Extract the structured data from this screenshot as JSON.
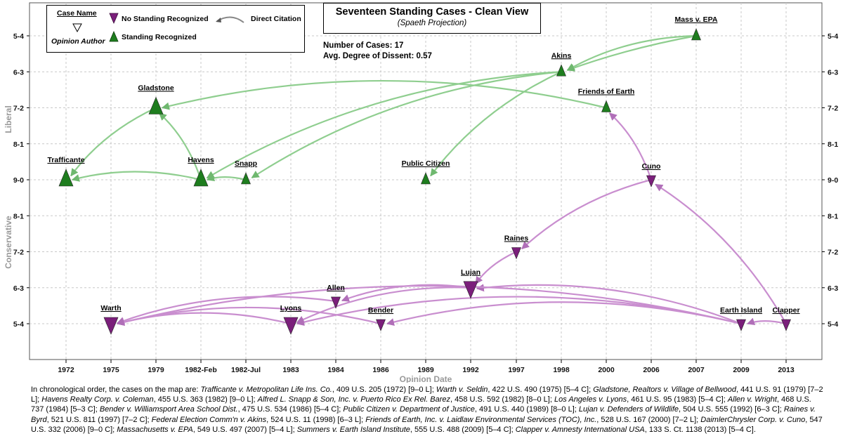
{
  "chart_data": {
    "type": "scatter",
    "title": "Seventeen Standing Cases - Clean View",
    "subtitle": "(Spaeth Projection)",
    "stats": {
      "cases_label": "Number of Cases: 17",
      "dissent_label": "Avg. Degree of Dissent: 0.57"
    },
    "xlabel": "Opinion Date",
    "ylabel_top": "Liberal",
    "ylabel_bottom": "Conservative",
    "x_categories": [
      "1972",
      "1975",
      "1979",
      "1982-Feb",
      "1982-Jul",
      "1983",
      "1984",
      "1986",
      "1989",
      "1992",
      "1997",
      "1998",
      "2000",
      "2006",
      "2007",
      "2009",
      "2013"
    ],
    "y_categories": [
      "5-4",
      "6-3",
      "7-2",
      "8-1",
      "9-0",
      "8-1",
      "7-2",
      "6-3",
      "5-4"
    ],
    "y_axis_note": "top = liberal (5-4), middle = unanimous 9-0, bottom = conservative (5-4)",
    "grid": true,
    "legend": {
      "case_name": "Case Name",
      "opinion_author": "Opinion Author",
      "no_standing": "No Standing Recognized",
      "standing": "Standing Recognized",
      "citation": "Direct Citation"
    },
    "colors": {
      "recognized": "#1e7d1e",
      "not_recognized": "#7b1f7b",
      "recognized_edge": "#8fce8f",
      "not_recognized_edge": "#c98ecf",
      "grid": "#c8c8c8"
    },
    "cases": [
      {
        "name": "Trafficante",
        "x": "1972",
        "y": "9-0",
        "standing": true,
        "size": "large"
      },
      {
        "name": "Warth",
        "x": "1975",
        "y": "5-4 C",
        "standing": false,
        "size": "large"
      },
      {
        "name": "Gladstone",
        "x": "1979",
        "y": "7-2 L",
        "standing": true,
        "size": "large"
      },
      {
        "name": "Havens",
        "x": "1982-Feb",
        "y": "9-0",
        "standing": true,
        "size": "large"
      },
      {
        "name": "Snapp",
        "x": "1982-Jul",
        "y": "8-0 L",
        "standing": true,
        "size": "small"
      },
      {
        "name": "Lyons",
        "x": "1983",
        "y": "5-4 C",
        "standing": false,
        "size": "large"
      },
      {
        "name": "Allen",
        "x": "1984",
        "y": "5-3 C",
        "standing": false,
        "size": "small"
      },
      {
        "name": "Bender",
        "x": "1986",
        "y": "5-4 C",
        "standing": false,
        "size": "small"
      },
      {
        "name": "Public Citizen",
        "x": "1989",
        "y": "8-0 L",
        "standing": true,
        "size": "small"
      },
      {
        "name": "Lujan",
        "x": "1992",
        "y": "6-3 C",
        "standing": false,
        "size": "large"
      },
      {
        "name": "Raines",
        "x": "1997",
        "y": "7-2 C",
        "standing": false,
        "size": "small"
      },
      {
        "name": "Akins",
        "x": "1998",
        "y": "6-3 L",
        "standing": true,
        "size": "small"
      },
      {
        "name": "Friends of Earth",
        "x": "2000",
        "y": "7-2 L",
        "standing": true,
        "size": "small"
      },
      {
        "name": "Cuno",
        "x": "2006",
        "y": "9-0 C",
        "standing": false,
        "size": "small"
      },
      {
        "name": "Mass v. EPA",
        "x": "2007",
        "y": "5-4 L",
        "standing": true,
        "size": "small"
      },
      {
        "name": "Earth Island",
        "x": "2009",
        "y": "5-4 C",
        "standing": false,
        "size": "small"
      },
      {
        "name": "Clapper",
        "x": "2013",
        "y": "5-4 C",
        "standing": false,
        "size": "small"
      }
    ],
    "citations": [
      {
        "from": "Gladstone",
        "to": "Trafficante"
      },
      {
        "from": "Havens",
        "to": "Trafficante"
      },
      {
        "from": "Havens",
        "to": "Gladstone"
      },
      {
        "from": "Snapp",
        "to": "Havens"
      },
      {
        "from": "Akins",
        "to": "Havens"
      },
      {
        "from": "Akins",
        "to": "Snapp"
      },
      {
        "from": "Akins",
        "to": "Public Citizen"
      },
      {
        "from": "Friends of Earth",
        "to": "Gladstone"
      },
      {
        "from": "Cuno",
        "to": "Friends of Earth"
      },
      {
        "from": "Mass v. EPA",
        "to": "Akins"
      },
      {
        "from": "Mass v. EPA",
        "to": "Akins"
      },
      {
        "from": "Lyons",
        "to": "Warth"
      },
      {
        "from": "Allen",
        "to": "Warth"
      },
      {
        "from": "Bender",
        "to": "Warth"
      },
      {
        "from": "Lujan",
        "to": "Allen"
      },
      {
        "from": "Lujan",
        "to": "Lyons"
      },
      {
        "from": "Raines",
        "to": "Lujan"
      },
      {
        "from": "Cuno",
        "to": "Raines"
      },
      {
        "from": "Clapper",
        "to": "Cuno"
      },
      {
        "from": "Clapper",
        "to": "Earth Island"
      },
      {
        "from": "Earth Island",
        "to": "Lujan"
      },
      {
        "from": "Earth Island",
        "to": "Lyons"
      },
      {
        "from": "Earth Island",
        "to": "Bender"
      },
      {
        "from": "Earth Island",
        "to": "Warth"
      }
    ]
  },
  "caption": {
    "intro": "In chronological order, the cases on the map are:",
    "items": [
      {
        "case": "Trafficante v. Metropolitan Life Ins. Co.",
        "cite": "409 U.S. 205 (1972) [9–0 L]"
      },
      {
        "case": "Warth v. Seldin",
        "cite": "422 U.S. 490 (1975) [5–4 C]"
      },
      {
        "case": "Gladstone, Realtors v. Village of Bellwood",
        "cite": "441 U.S. 91 (1979) [7–2 L]"
      },
      {
        "case": "Havens Realty Corp. v. Coleman",
        "cite": "455 U.S. 363 (1982) [9–0 L]"
      },
      {
        "case": "Alfred L. Snapp & Son, Inc. v. Puerto Rico Ex Rel. Barez",
        "cite": "458 U.S. 592 (1982) [8–0 L]"
      },
      {
        "case": "Los Angeles v. Lyons",
        "cite": "461 U.S. 95 (1983) [5–4 C]"
      },
      {
        "case": "Allen v. Wright",
        "cite": "468 U.S. 737 (1984) [5–3 C]"
      },
      {
        "case": "Bender v. Williamsport Area School Dist.",
        "cite": "475 U.S. 534 (1986) [5–4 C]"
      },
      {
        "case": "Public Citizen v. Department of Justice",
        "cite": "491 U.S. 440 (1989) [8–0 L]"
      },
      {
        "case": "Lujan v. Defenders of Wildlife",
        "cite": "504 U.S. 555 (1992) [6–3 C]"
      },
      {
        "case": "Raines v. Byrd",
        "cite": "521 U.S. 811 (1997) [7–2 C]"
      },
      {
        "case": "Federal Election Comm'n v. Akins",
        "cite": "524 U.S. 11 (1998) [6–3 L]"
      },
      {
        "case": "Friends of Earth, Inc. v. Laidlaw Environmental Services (TOC), Inc.",
        "cite": "528 U.S. 167 (2000) [7–2 L]"
      },
      {
        "case": "DaimlerChrysler Corp. v. Cuno",
        "cite": "547 U.S. 332 (2006) [9–0 C]"
      },
      {
        "case": "Massachusetts v. EPA",
        "cite": "549 U.S. 497 (2007) [5–4 L]"
      },
      {
        "case": "Summers v. Earth Island Institute",
        "cite": "555 U.S. 488 (2009) [5–4 C]"
      },
      {
        "case": "Clapper v. Amnesty International USA",
        "cite": "133 S. Ct. 1138 (2013) [5–4 C]"
      }
    ]
  }
}
